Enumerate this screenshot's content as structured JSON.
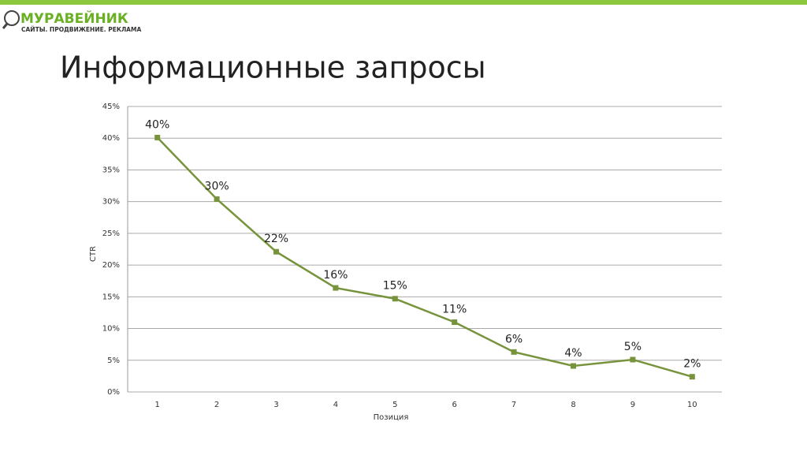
{
  "logo": {
    "name": "МУРАВЕЙНИК",
    "tagline": "САЙТЫ. ПРОДВИЖЕНИЕ. РЕКЛАМА"
  },
  "chart_data": {
    "type": "line",
    "title": "Информационные запросы",
    "x_label": "Позиция",
    "y_label": "CTR",
    "categories": [
      "1",
      "2",
      "3",
      "4",
      "5",
      "6",
      "7",
      "8",
      "9",
      "10"
    ],
    "series": [
      {
        "name": "CTR",
        "color": "#77933c",
        "values": [
          40.1,
          30.4,
          22.1,
          16.4,
          14.7,
          11.0,
          6.3,
          4.1,
          5.1,
          2.4
        ],
        "value_labels": [
          "40%",
          "30%",
          "22%",
          "16%",
          "15%",
          "11%",
          "6%",
          "4%",
          "5%",
          "2%"
        ]
      }
    ],
    "ylim": [
      0,
      45
    ],
    "yticks": [
      {
        "value": 0,
        "label": "0%"
      },
      {
        "value": 5,
        "label": "5%"
      },
      {
        "value": 10,
        "label": "10%"
      },
      {
        "value": 15,
        "label": "15%"
      },
      {
        "value": 20,
        "label": "20%"
      },
      {
        "value": 25,
        "label": "25%"
      },
      {
        "value": 30,
        "label": "30%"
      },
      {
        "value": 35,
        "label": "35%"
      },
      {
        "value": 40,
        "label": "40%"
      },
      {
        "value": 45,
        "label": "45%"
      }
    ],
    "grid": true,
    "legend": false
  }
}
